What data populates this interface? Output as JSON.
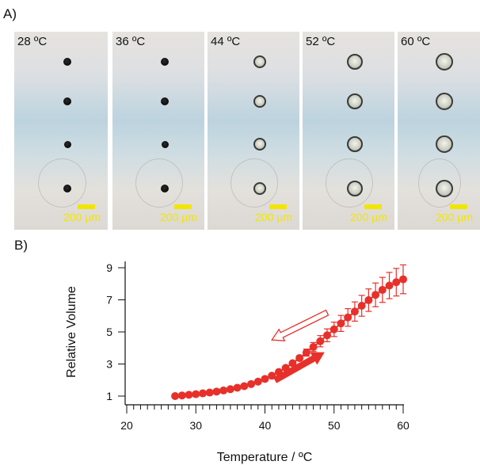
{
  "panel_a_label": "A)",
  "panel_b_label": "B)",
  "micrographs": [
    {
      "temperature": "28 ºC",
      "state": "dark",
      "scale_label": "200 µm"
    },
    {
      "temperature": "36 ºC",
      "state": "dark",
      "scale_label": "200 µm"
    },
    {
      "temperature": "44 ºC",
      "state": "clear",
      "scale_label": "200 µm"
    },
    {
      "temperature": "52 ºC",
      "state": "clear",
      "scale_label": "200 µm"
    },
    {
      "temperature": "60 ºC",
      "state": "clear",
      "scale_label": "200 µm"
    }
  ],
  "colors": {
    "series": "#e8302a",
    "scale_bar": "#f2e600",
    "axis": "#111111"
  },
  "chart_data": {
    "type": "scatter",
    "title": "",
    "xlabel": "Temperature / ºC",
    "ylabel": "Relative Volume",
    "xlim": [
      18,
      62
    ],
    "ylim": [
      0.5,
      10
    ],
    "xticks": [
      20,
      30,
      40,
      50,
      60
    ],
    "yticks": [
      1,
      3,
      5,
      7,
      9
    ],
    "x_minor_tick_step": 1,
    "grid": false,
    "markers": "filled circles joined by line, with vertical error bars",
    "series": [
      {
        "x": [
          27,
          28,
          29,
          30,
          31,
          32,
          33,
          34,
          35,
          36,
          37,
          38,
          39,
          40,
          41,
          42,
          43,
          44,
          45,
          46,
          47,
          48,
          49,
          50,
          51,
          52,
          53,
          54,
          55,
          56,
          57,
          58,
          59,
          60
        ],
        "y": [
          1.0,
          1.04,
          1.08,
          1.12,
          1.17,
          1.22,
          1.28,
          1.35,
          1.43,
          1.52,
          1.62,
          1.75,
          1.9,
          2.07,
          2.27,
          2.5,
          2.76,
          3.05,
          3.37,
          3.71,
          4.06,
          4.42,
          4.79,
          5.16,
          5.53,
          5.9,
          6.27,
          6.63,
          6.98,
          7.31,
          7.62,
          7.89,
          8.1,
          8.28
        ],
        "error": [
          0,
          0,
          0,
          0,
          0,
          0,
          0,
          0,
          0,
          0,
          0,
          0,
          0,
          0,
          0,
          0,
          0.05,
          0.1,
          0.15,
          0.22,
          0.28,
          0.35,
          0.4,
          0.45,
          0.5,
          0.55,
          0.6,
          0.65,
          0.7,
          0.74,
          0.78,
          0.82,
          0.86,
          0.9
        ]
      }
    ],
    "arrows": [
      {
        "style": "outline",
        "direction": "left",
        "from": [
          49,
          6.2
        ],
        "to": [
          41,
          4.5
        ]
      },
      {
        "style": "filled",
        "direction": "right",
        "from": [
          41.5,
          2.0
        ],
        "to": [
          48.5,
          3.7
        ]
      }
    ]
  }
}
